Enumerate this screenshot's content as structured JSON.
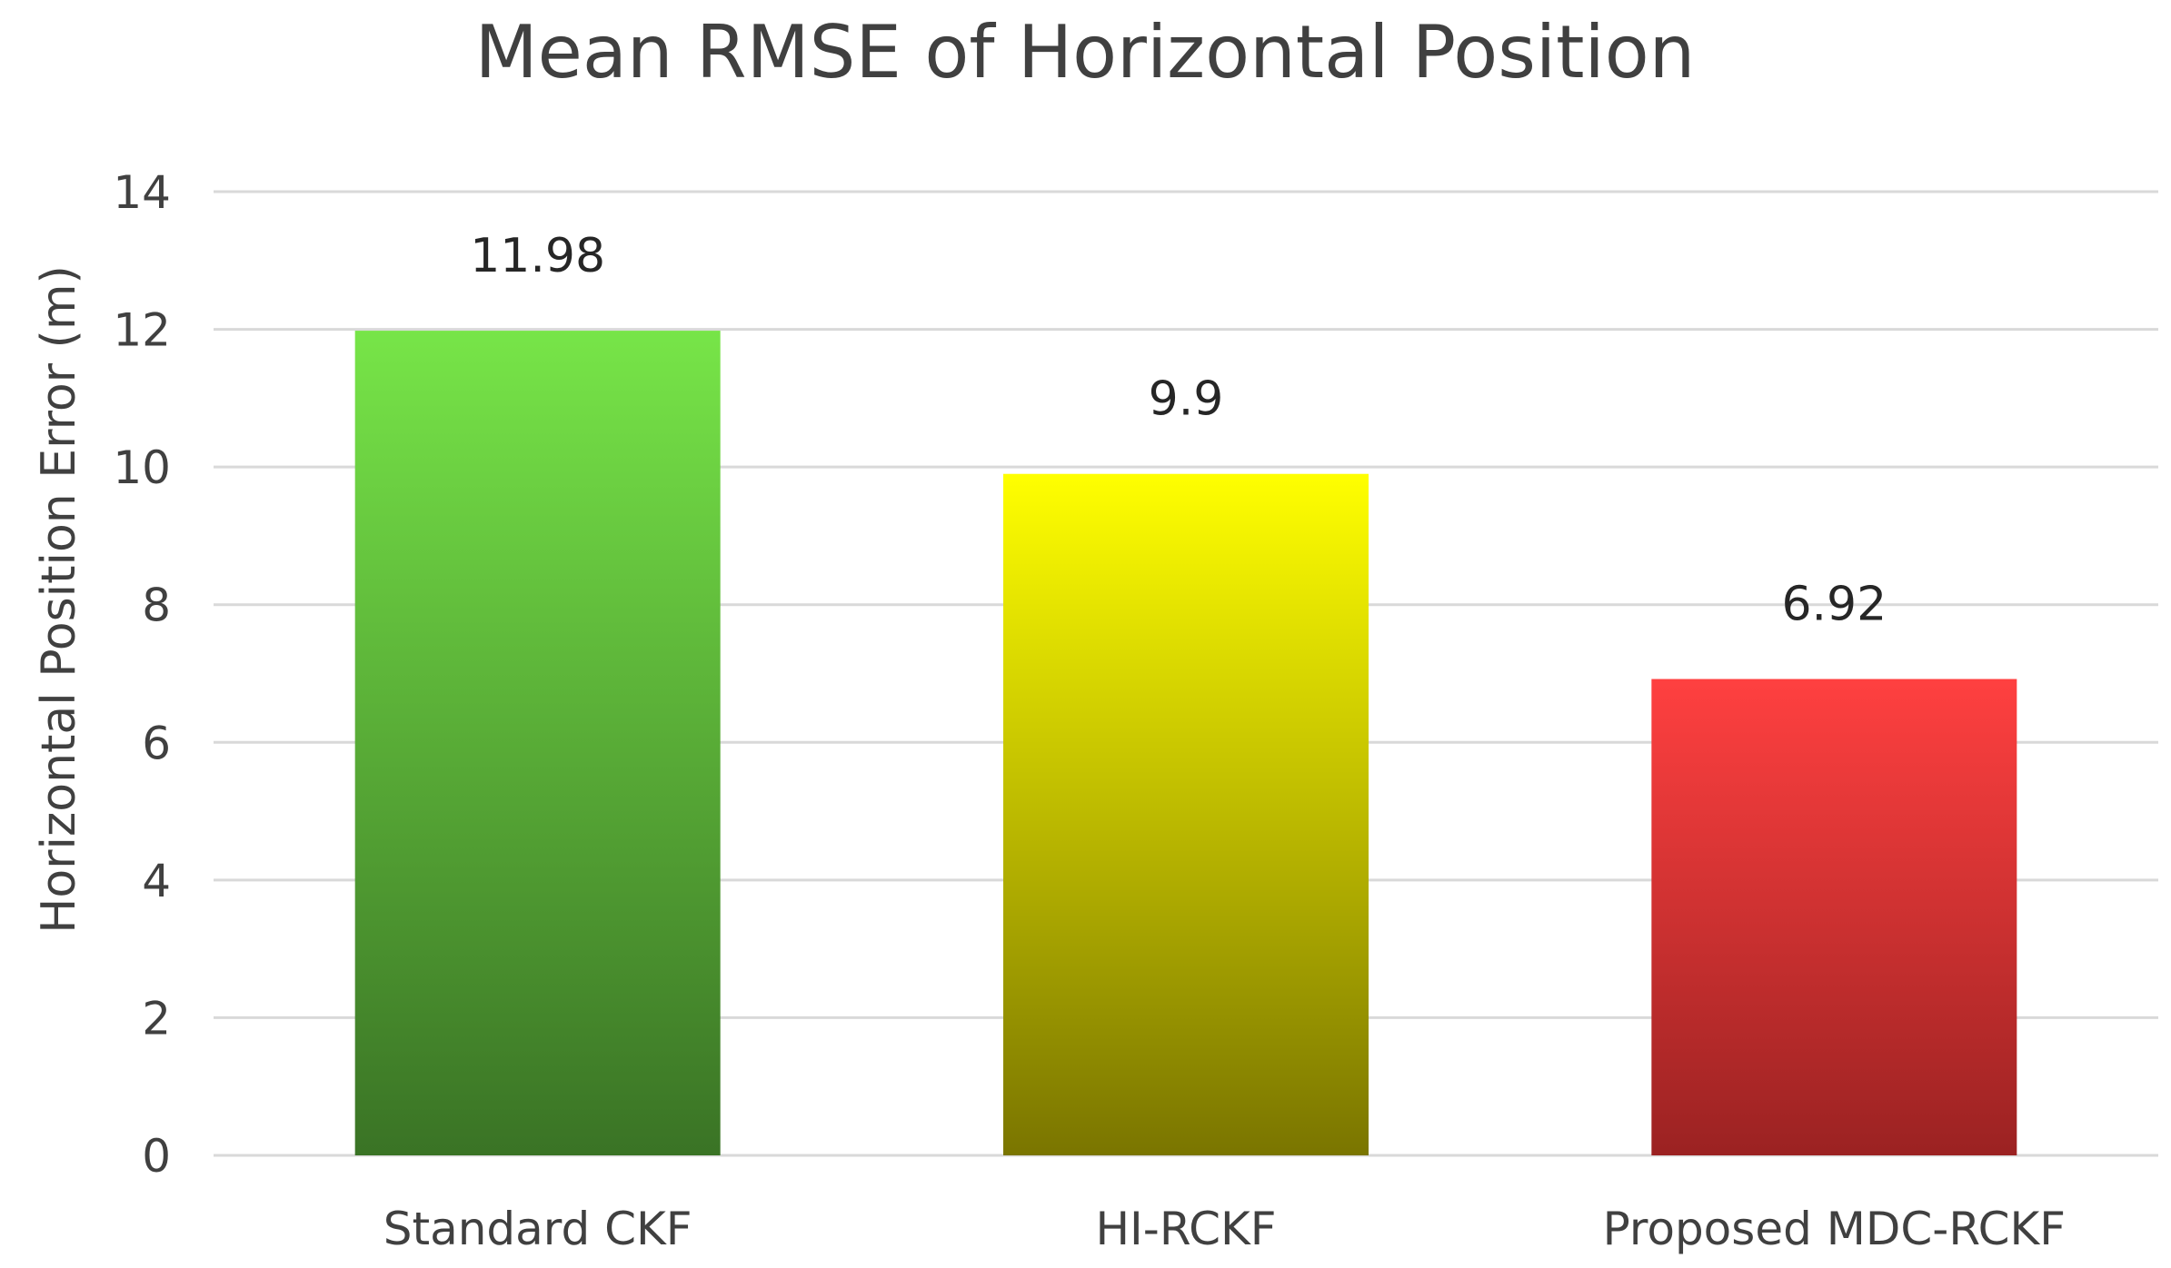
{
  "chart_data": {
    "type": "bar",
    "title": "Mean RMSE of Horizontal Position",
    "xlabel": "",
    "ylabel": "Horizontal Position Error (m)",
    "categories": [
      "Standard CKF",
      "HI-RCKF",
      "Proposed MDC-RCKF"
    ],
    "values": [
      11.98,
      9.9,
      6.92
    ],
    "data_labels": [
      "11.98",
      "9.9",
      "6.92"
    ],
    "ylim": [
      0,
      14
    ],
    "yticks": [
      0,
      2,
      4,
      6,
      8,
      10,
      12,
      14
    ],
    "grid": true,
    "legend": "none",
    "colors": [
      {
        "top": "#77e548",
        "bottom": "#3a7325"
      },
      {
        "top": "#ffff00",
        "bottom": "#7a7500"
      },
      {
        "top": "#ff4040",
        "bottom": "#9b2222"
      }
    ]
  }
}
